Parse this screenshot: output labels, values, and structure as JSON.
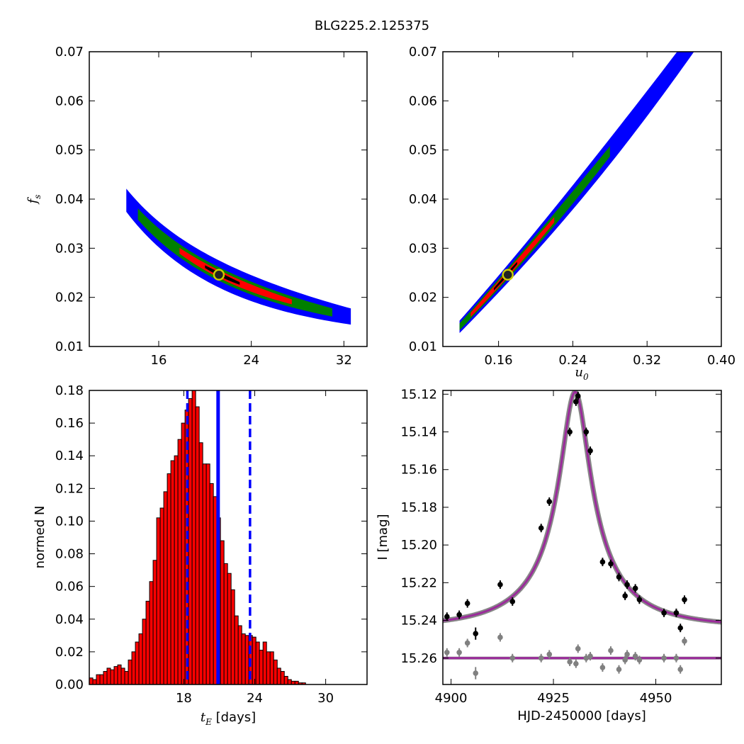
{
  "title": "BLG225.2.125375",
  "colors": {
    "conf3": "#0000ff",
    "conf2": "#008000",
    "conf1": "#ff0000",
    "best": "#000000",
    "marker_edge": "#cccc00",
    "hist_fill": "#ff0000",
    "vline": "#0000ff",
    "model": "#9b2b9b",
    "data_main": "#000000",
    "data_resid": "#808080"
  },
  "chart_data": [
    {
      "id": "fs_vs_tE",
      "type": "heatmap",
      "xlabel": "",
      "ylabel_sym": "f",
      "ylabel_sub": "s",
      "xlim": [
        10,
        34
      ],
      "ylim": [
        0.01,
        0.07
      ],
      "xticks": [
        16,
        24,
        32
      ],
      "xtick_labels": [
        "16",
        "24",
        "32"
      ],
      "yticks": [
        0.01,
        0.02,
        0.03,
        0.04,
        0.05,
        0.06,
        0.07
      ],
      "ytick_labels": [
        "0.01",
        "0.02",
        "0.03",
        "0.04",
        "0.05",
        "0.06",
        "0.07"
      ],
      "relation": "fs = 0.525 / tE",
      "confidence_regions_tE": {
        "conf3": [
          13.2,
          32.6
        ],
        "conf2": [
          14.2,
          31.0
        ],
        "conf1": [
          17.8,
          27.5
        ],
        "best": [
          20.0,
          23.0
        ]
      },
      "best_fit": {
        "x": 21.2,
        "y": 0.0246
      }
    },
    {
      "id": "fs_vs_u0",
      "type": "heatmap",
      "xlabel_sym": "u",
      "xlabel_sub": "0",
      "xlim": [
        0.1,
        0.4
      ],
      "ylim": [
        0.01,
        0.07
      ],
      "xticks": [
        0.16,
        0.24,
        0.32,
        0.4
      ],
      "xtick_labels": [
        "0.16",
        "0.24",
        "0.32",
        "0.40"
      ],
      "yticks": [
        0.01,
        0.02,
        0.03,
        0.04,
        0.05,
        0.06,
        0.07
      ],
      "ytick_labels": [
        "0.01",
        "0.02",
        "0.03",
        "0.04",
        "0.05",
        "0.06",
        "0.07"
      ],
      "relation": "fs = 0.014 + 0.2024*(u0-0.118) + 0.112*(u0-0.118)^2",
      "confidence_regions_u0": {
        "conf3": [
          0.118,
          0.373
        ],
        "conf2": [
          0.118,
          0.28
        ],
        "conf1": [
          0.13,
          0.22
        ],
        "best": [
          0.155,
          0.18
        ]
      },
      "best_fit": {
        "x": 0.17,
        "y": 0.0246
      }
    },
    {
      "id": "tE_histogram",
      "type": "bar",
      "xlabel_sym": "t",
      "xlabel_sub": "E",
      "xlabel_unit": "[days]",
      "ylabel": "normed N",
      "xlim": [
        10,
        33.5
      ],
      "ylim": [
        0,
        0.18
      ],
      "xticks": [
        18,
        24,
        30
      ],
      "xtick_labels": [
        "18",
        "24",
        "30"
      ],
      "yticks": [
        0.0,
        0.02,
        0.04,
        0.06,
        0.08,
        0.1,
        0.12,
        0.14,
        0.16,
        0.18
      ],
      "ytick_labels": [
        "0.00",
        "0.02",
        "0.04",
        "0.06",
        "0.08",
        "0.10",
        "0.12",
        "0.14",
        "0.16",
        "0.18"
      ],
      "bin_start": 10.0,
      "bin_width": 0.3,
      "values": [
        0.004,
        0.003,
        0.006,
        0.006,
        0.008,
        0.01,
        0.009,
        0.011,
        0.012,
        0.01,
        0.008,
        0.015,
        0.02,
        0.026,
        0.031,
        0.04,
        0.051,
        0.063,
        0.076,
        0.102,
        0.108,
        0.118,
        0.129,
        0.137,
        0.14,
        0.15,
        0.16,
        0.168,
        0.175,
        0.183,
        0.17,
        0.148,
        0.135,
        0.135,
        0.123,
        0.115,
        0.102,
        0.088,
        0.074,
        0.068,
        0.058,
        0.042,
        0.036,
        0.031,
        0.03,
        0.03,
        0.029,
        0.026,
        0.021,
        0.026,
        0.02,
        0.02,
        0.015,
        0.01,
        0.008,
        0.005,
        0.003,
        0.002,
        0.002,
        0.001,
        0.001
      ],
      "median": 20.9,
      "lower": 18.3,
      "upper": 23.6
    },
    {
      "id": "light_curve",
      "type": "scatter",
      "xlabel": "HJD-2450000 [days]",
      "ylabel": "I [mag]",
      "xlim": [
        4898,
        4966
      ],
      "ylim": [
        15.274,
        15.118
      ],
      "xticks": [
        4900,
        4925,
        4950
      ],
      "xtick_labels": [
        "4900",
        "4925",
        "4950"
      ],
      "yticks": [
        15.12,
        15.14,
        15.16,
        15.18,
        15.2,
        15.22,
        15.24,
        15.26
      ],
      "ytick_labels": [
        "15.12",
        "15.14",
        "15.16",
        "15.18",
        "15.20",
        "15.22",
        "15.24",
        "15.26"
      ],
      "model": {
        "t0": 4930.3,
        "tE": 21.2,
        "u0": 0.17,
        "fs": 0.0246,
        "baseline": 15.2435
      },
      "resid_offset": 15.26,
      "x": [
        4899,
        4902,
        4904,
        4906,
        4912,
        4915,
        4922,
        4924,
        4929,
        4930.5,
        4931,
        4933,
        4934,
        4937,
        4939,
        4941,
        4942.5,
        4943,
        4945,
        4946,
        4952,
        4955,
        4956,
        4957
      ],
      "y": [
        15.238,
        15.237,
        15.231,
        15.247,
        15.221,
        15.23,
        15.191,
        15.177,
        15.14,
        15.124,
        15.121,
        15.14,
        15.15,
        15.209,
        15.21,
        15.217,
        15.227,
        15.221,
        15.223,
        15.229,
        15.236,
        15.236,
        15.244,
        15.229
      ],
      "yerr": [
        0.003,
        0.003,
        0.003,
        0.004,
        0.003,
        0.003,
        0.003,
        0.003,
        0.003,
        0.003,
        0.003,
        0.003,
        0.003,
        0.003,
        0.003,
        0.003,
        0.003,
        0.003,
        0.003,
        0.003,
        0.003,
        0.003,
        0.003,
        0.003
      ],
      "resid_x": [
        4899,
        4902,
        4904,
        4906,
        4912,
        4915,
        4922,
        4924,
        4929,
        4930.5,
        4931,
        4933,
        4934,
        4937,
        4939,
        4941,
        4942.5,
        4943,
        4945,
        4946,
        4952,
        4955,
        4956,
        4957
      ],
      "resid_y": [
        15.257,
        15.257,
        15.252,
        15.268,
        15.249,
        15.26,
        15.26,
        15.258,
        15.262,
        15.263,
        15.255,
        15.26,
        15.259,
        15.265,
        15.256,
        15.266,
        15.261,
        15.258,
        15.259,
        15.261,
        15.26,
        15.26,
        15.266,
        15.251
      ]
    }
  ]
}
